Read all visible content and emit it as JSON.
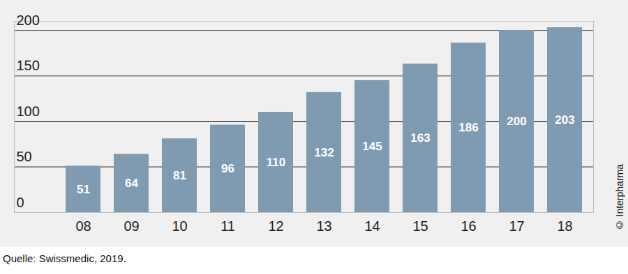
{
  "chart_data": {
    "type": "bar",
    "categories": [
      "08",
      "09",
      "10",
      "11",
      "12",
      "13",
      "14",
      "15",
      "16",
      "17",
      "18"
    ],
    "values": [
      51,
      64,
      81,
      96,
      110,
      132,
      145,
      163,
      186,
      200,
      203
    ],
    "color": "#7f9bb2",
    "ylim": [
      0,
      210
    ],
    "yticks": [
      0,
      50,
      100,
      150,
      200
    ],
    "grid": true,
    "data_labels": true,
    "caption": "Quelle: Swissmedic, 2019.",
    "annotations": [
      "© Interpharma"
    ]
  }
}
